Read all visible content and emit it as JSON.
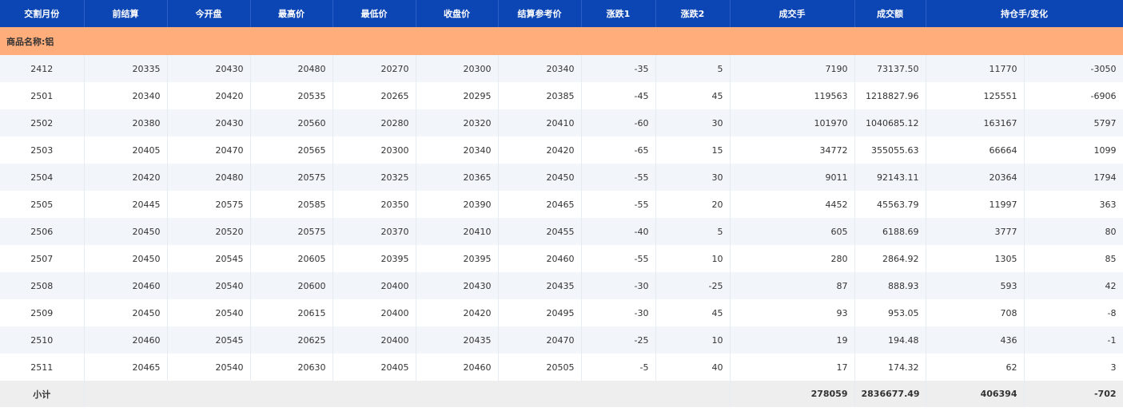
{
  "header": [
    "交割月份",
    "前结算",
    "今开盘",
    "最高价",
    "最低价",
    "收盘价",
    "结算参考价",
    "涨跌1",
    "涨跌2",
    "成交手",
    "成交额",
    "持仓手/变化"
  ],
  "section": "商品名称:铝",
  "rows": [
    [
      "2412",
      "20335",
      "20430",
      "20480",
      "20270",
      "20300",
      "20340",
      "-35",
      "5",
      "7190",
      "73137.50",
      "11770",
      "-3050"
    ],
    [
      "2501",
      "20340",
      "20420",
      "20535",
      "20265",
      "20295",
      "20385",
      "-45",
      "45",
      "119563",
      "1218827.96",
      "125551",
      "-6906"
    ],
    [
      "2502",
      "20380",
      "20430",
      "20560",
      "20280",
      "20320",
      "20410",
      "-60",
      "30",
      "101970",
      "1040685.12",
      "163167",
      "5797"
    ],
    [
      "2503",
      "20405",
      "20470",
      "20565",
      "20300",
      "20340",
      "20420",
      "-65",
      "15",
      "34772",
      "355055.63",
      "66664",
      "1099"
    ],
    [
      "2504",
      "20420",
      "20480",
      "20575",
      "20325",
      "20365",
      "20450",
      "-55",
      "30",
      "9011",
      "92143.11",
      "20364",
      "1794"
    ],
    [
      "2505",
      "20445",
      "20575",
      "20585",
      "20350",
      "20390",
      "20465",
      "-55",
      "20",
      "4452",
      "45563.79",
      "11997",
      "363"
    ],
    [
      "2506",
      "20450",
      "20520",
      "20575",
      "20370",
      "20410",
      "20455",
      "-40",
      "5",
      "605",
      "6188.69",
      "3777",
      "80"
    ],
    [
      "2507",
      "20450",
      "20545",
      "20605",
      "20395",
      "20395",
      "20460",
      "-55",
      "10",
      "280",
      "2864.92",
      "1305",
      "85"
    ],
    [
      "2508",
      "20460",
      "20540",
      "20600",
      "20400",
      "20430",
      "20435",
      "-30",
      "-25",
      "87",
      "888.93",
      "593",
      "42"
    ],
    [
      "2509",
      "20450",
      "20540",
      "20615",
      "20400",
      "20420",
      "20495",
      "-30",
      "45",
      "93",
      "953.05",
      "708",
      "-8"
    ],
    [
      "2510",
      "20460",
      "20545",
      "20625",
      "20400",
      "20435",
      "20470",
      "-25",
      "10",
      "19",
      "194.48",
      "436",
      "-1"
    ],
    [
      "2511",
      "20465",
      "20540",
      "20630",
      "20405",
      "20460",
      "20505",
      "-5",
      "40",
      "17",
      "174.32",
      "62",
      "3"
    ]
  ],
  "subtotal": {
    "label": "小计",
    "volume": "278059",
    "turnover": "2836677.49",
    "open_interest": "406394",
    "change": "-702"
  }
}
